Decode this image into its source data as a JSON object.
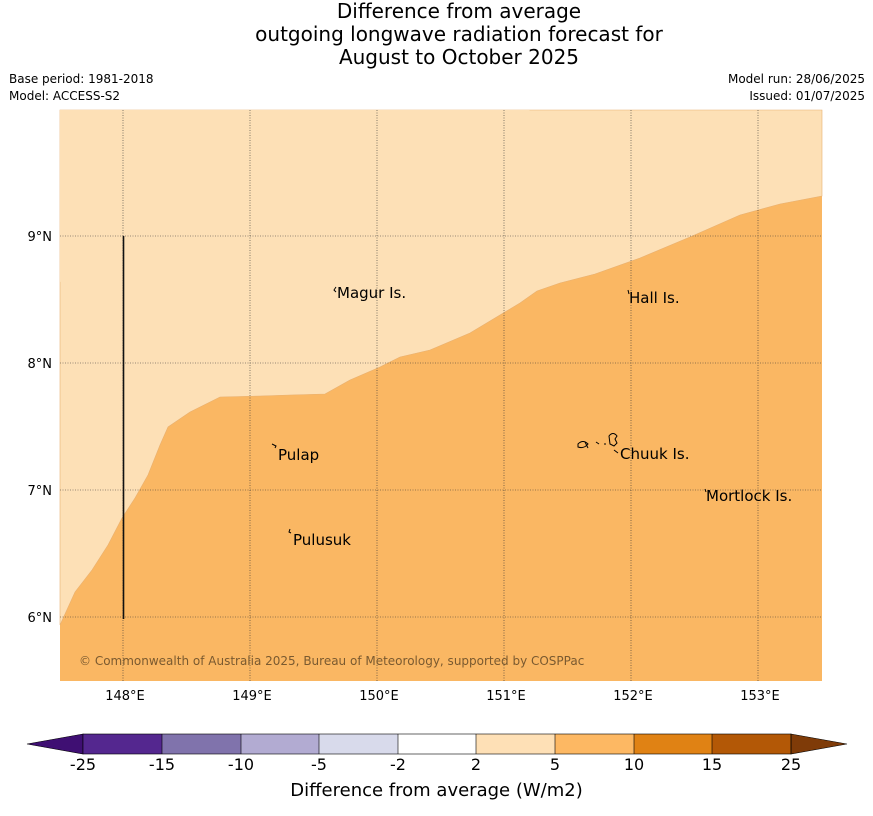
{
  "title": {
    "line1": "Difference from average",
    "line2": "outgoing longwave radiation forecast for",
    "line3": "August to October 2025"
  },
  "meta": {
    "base_period": "Base period: 1981-2018",
    "model": "Model: ACCESS-S2",
    "model_run": "Model run: 28/06/2025",
    "issued": "Issued: 01/07/2025"
  },
  "map": {
    "lon_range": [
      147.5,
      153.5
    ],
    "lat_range": [
      5.5,
      10.0
    ],
    "lon_ticks": [
      "148°E",
      "149°E",
      "150°E",
      "151°E",
      "152°E",
      "153°E"
    ],
    "lat_ticks": [
      "9°N",
      "8°N",
      "7°N",
      "6°N"
    ],
    "grid": true,
    "colors": {
      "band_2_5": "#fde0b6",
      "band_5_10": "#fab763",
      "land": "#000000"
    },
    "places": [
      {
        "name": "Magur Is."
      },
      {
        "name": "Hall Is."
      },
      {
        "name": "Pulap"
      },
      {
        "name": "Chuuk Is."
      },
      {
        "name": "Mortlock Is."
      },
      {
        "name": "Pulusuk"
      }
    ],
    "copyright": "© Commonwealth of Australia 2025, Bureau of Meteorology, supported by COSPPac"
  },
  "colorbar": {
    "title": "Difference from average (W/m2)",
    "labels": [
      "-25",
      "-15",
      "-10",
      "-5",
      "-2",
      "2",
      "5",
      "10",
      "15",
      "25"
    ],
    "colors": [
      "#3f0f73",
      "#54278f",
      "#8073ac",
      "#b2abd2",
      "#d8daeb",
      "#ffffff",
      "#fee0b6",
      "#fdb863",
      "#e08214",
      "#b35806",
      "#7f3b08"
    ]
  }
}
